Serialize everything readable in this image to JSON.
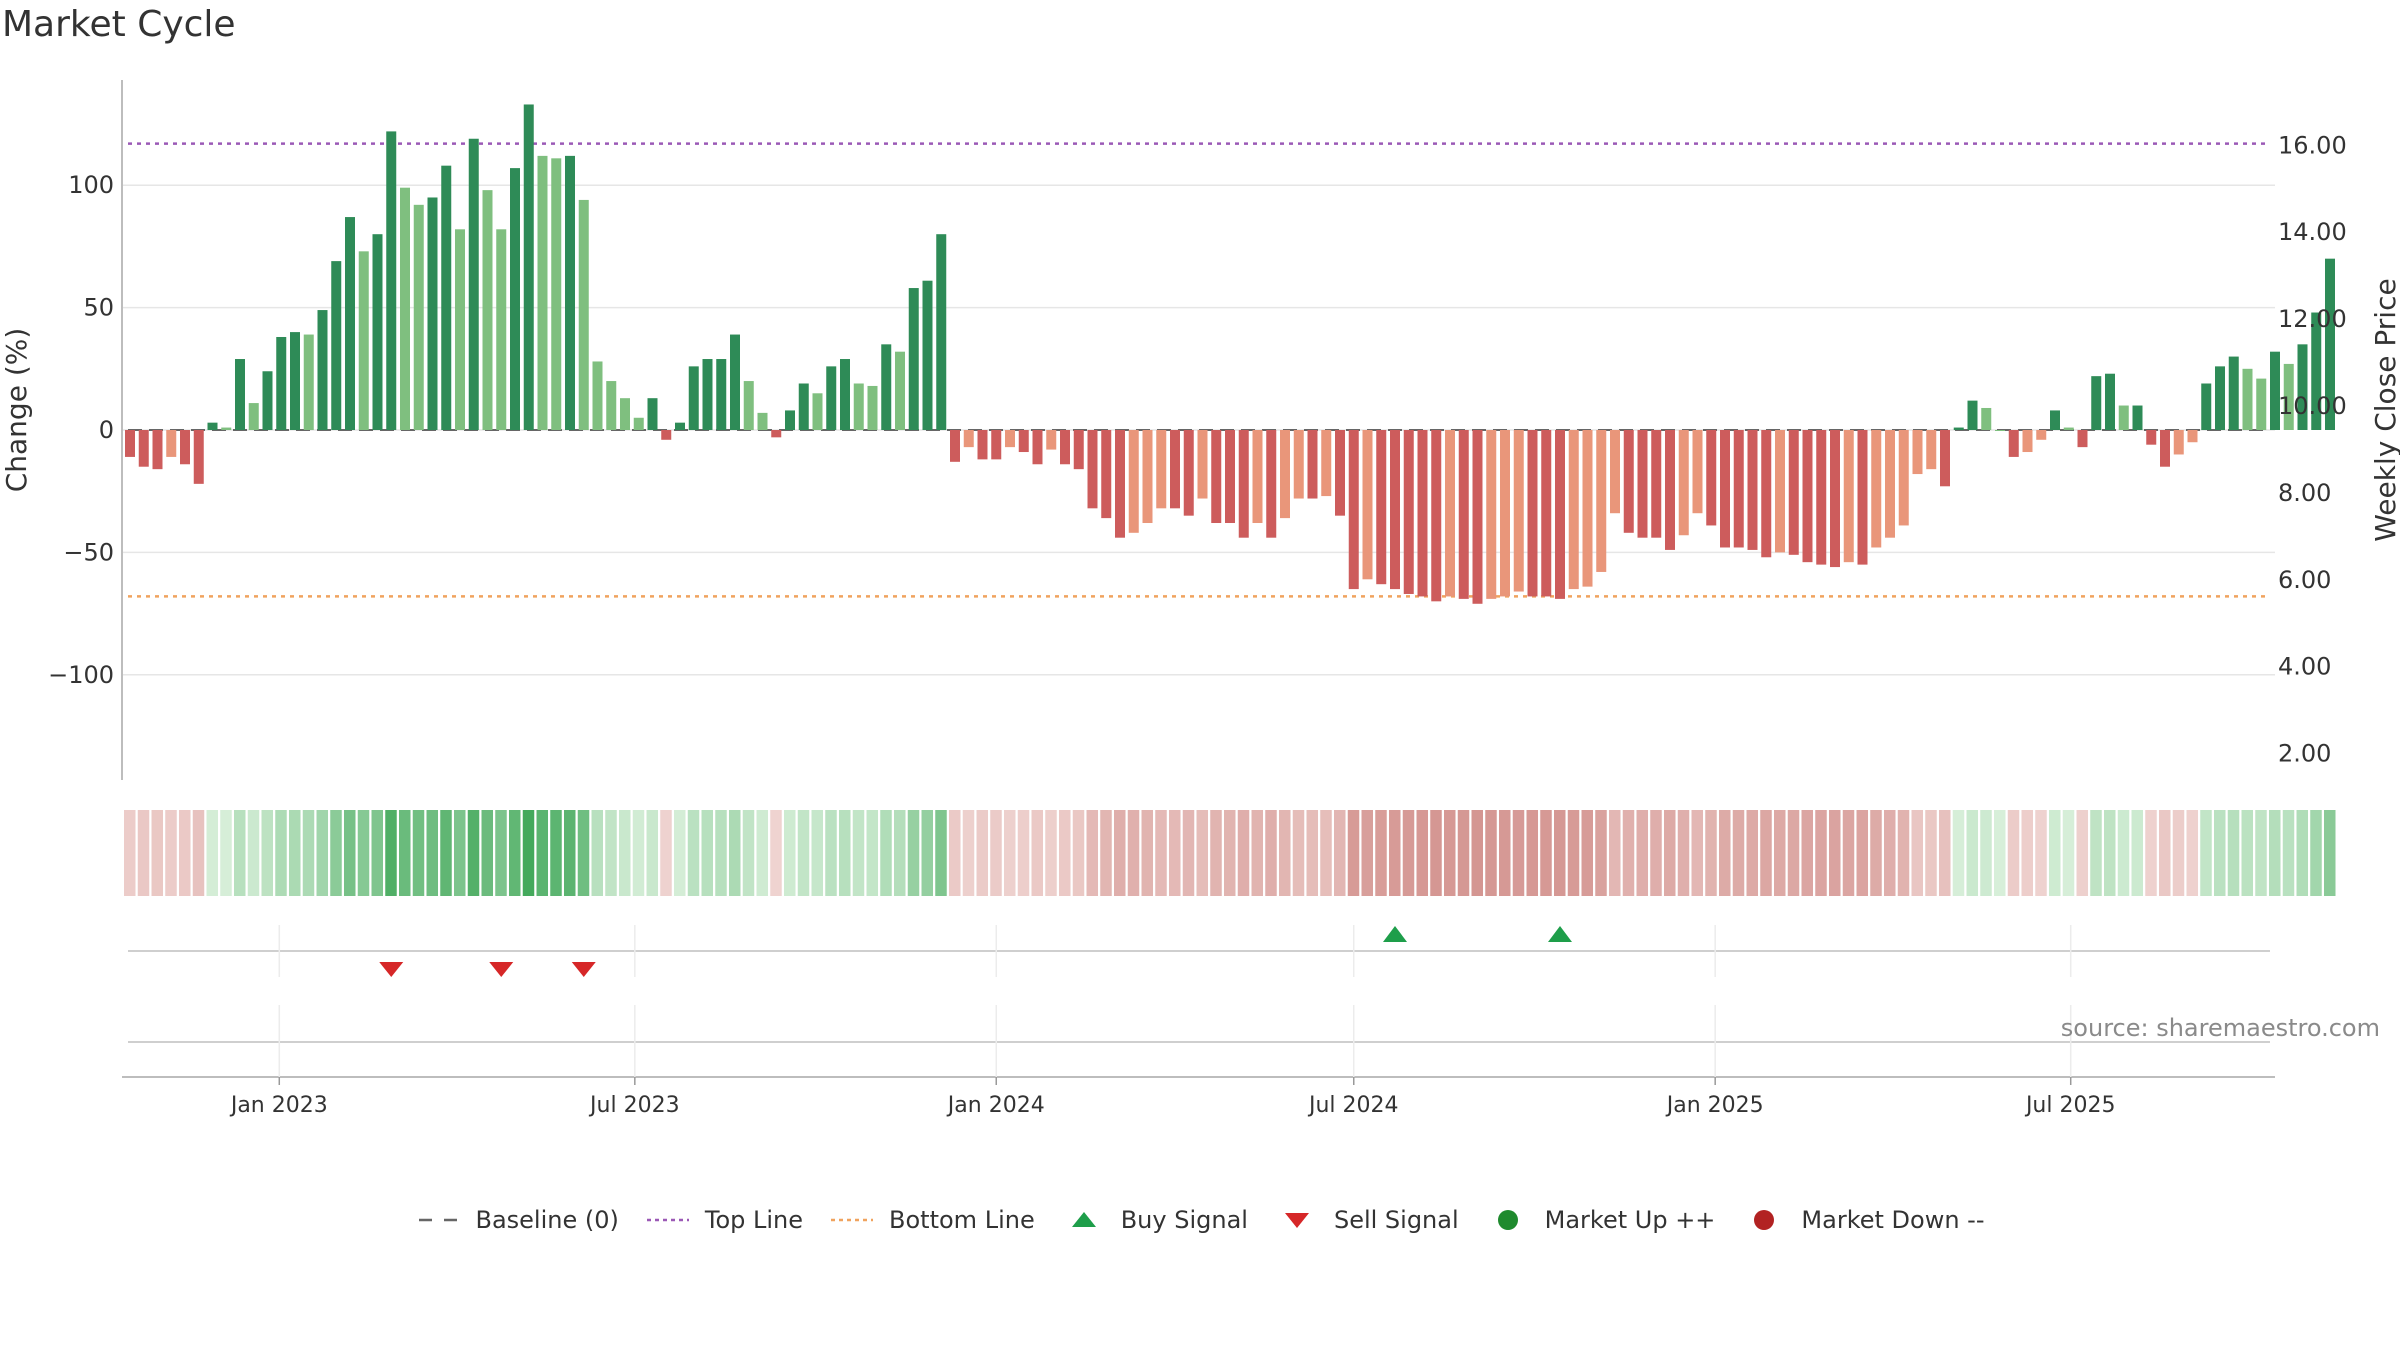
{
  "chart_data": {
    "type": "bar",
    "title": "Market Cycle",
    "ylabel": "Change (%)",
    "y2label": "Weekly Close Price",
    "ylim": [
      -143,
      143
    ],
    "y2lim": [
      1.37,
      17.48
    ],
    "yticks": [
      -100,
      -50,
      0,
      50,
      100
    ],
    "y2ticks": [
      "2.00",
      "4.00",
      "6.00",
      "8.00",
      "10.00",
      "12.00",
      "14.00",
      "16.00"
    ],
    "xticks": [
      "Jan 2023",
      "Jul 2023",
      "Jan 2024",
      "Jul 2024",
      "Jan 2025",
      "Jul 2025"
    ],
    "start_date": "2022-10-17",
    "interval": "weekly",
    "top_line": 117,
    "bottom_line": -68,
    "baseline": 0,
    "values": [
      -11,
      -15,
      -16,
      -11,
      -14,
      -22,
      3,
      1,
      29,
      11,
      24,
      38,
      40,
      39,
      49,
      69,
      87,
      73,
      80,
      122,
      99,
      92,
      95,
      108,
      82,
      119,
      98,
      82,
      107,
      133,
      112,
      111,
      112,
      94,
      28,
      20,
      13,
      5,
      13,
      -4,
      3,
      26,
      29,
      29,
      39,
      20,
      7,
      -3,
      8,
      19,
      15,
      26,
      29,
      19,
      18,
      35,
      32,
      58,
      61,
      80,
      -13,
      -7,
      -12,
      -12,
      -7,
      -9,
      -14,
      -8,
      -14,
      -16,
      -32,
      -36,
      -44,
      -42,
      -38,
      -32,
      -32,
      -35,
      -28,
      -38,
      -38,
      -44,
      -38,
      -44,
      -36,
      -28,
      -28,
      -27,
      -35,
      -65,
      -61,
      -63,
      -65,
      -67,
      -68,
      -70,
      -68,
      -69,
      -71,
      -69,
      -68,
      -66,
      -68,
      -68,
      -69,
      -65,
      -64,
      -58,
      -34,
      -42,
      -44,
      -44,
      -49,
      -43,
      -34,
      -39,
      -48,
      -48,
      -49,
      -52,
      -50,
      -51,
      -54,
      -55,
      -56,
      -54,
      -55,
      -48,
      -44,
      -39,
      -18,
      -16,
      -23,
      1,
      12,
      9,
      0,
      -11,
      -9,
      -4,
      8,
      1,
      -7,
      22,
      23,
      10,
      10,
      -6,
      -15,
      -10,
      -5,
      19,
      26,
      30,
      25,
      21,
      32,
      27,
      35,
      48,
      70
    ],
    "color_scale": {
      "up_strong": "#2e8b57",
      "up_weak": "#7fbf7f",
      "down_strong": "#cd5c5c",
      "down_weak": "#e9967a"
    },
    "heat_colors": {
      "up_low": "#d7efd9",
      "up_high": "#42a85a",
      "down_low": "#f0d6d3",
      "down_high": "#d49591"
    },
    "signals": {
      "buy": [
        "2024-07-22",
        "2024-10-14"
      ],
      "sell": [
        "2023-02-27",
        "2023-04-24",
        "2023-06-05"
      ]
    },
    "source": "source: sharemaestro.com",
    "legend": [
      {
        "label": "Baseline (0)",
        "symbol": "dash-line",
        "color": "#666666"
      },
      {
        "label": "Top Line",
        "symbol": "dotted-line",
        "color": "#9b59b6"
      },
      {
        "label": "Bottom Line",
        "symbol": "dotted-line",
        "color": "#f0a35e"
      },
      {
        "label": "Buy Signal",
        "symbol": "triangle-up",
        "color": "#1e9e4a"
      },
      {
        "label": "Sell Signal",
        "symbol": "triangle-down",
        "color": "#d62728"
      },
      {
        "label": "Market Up ++",
        "symbol": "circle",
        "color": "#1f8a2e"
      },
      {
        "label": "Market Down --",
        "symbol": "circle",
        "color": "#b22222"
      }
    ]
  }
}
